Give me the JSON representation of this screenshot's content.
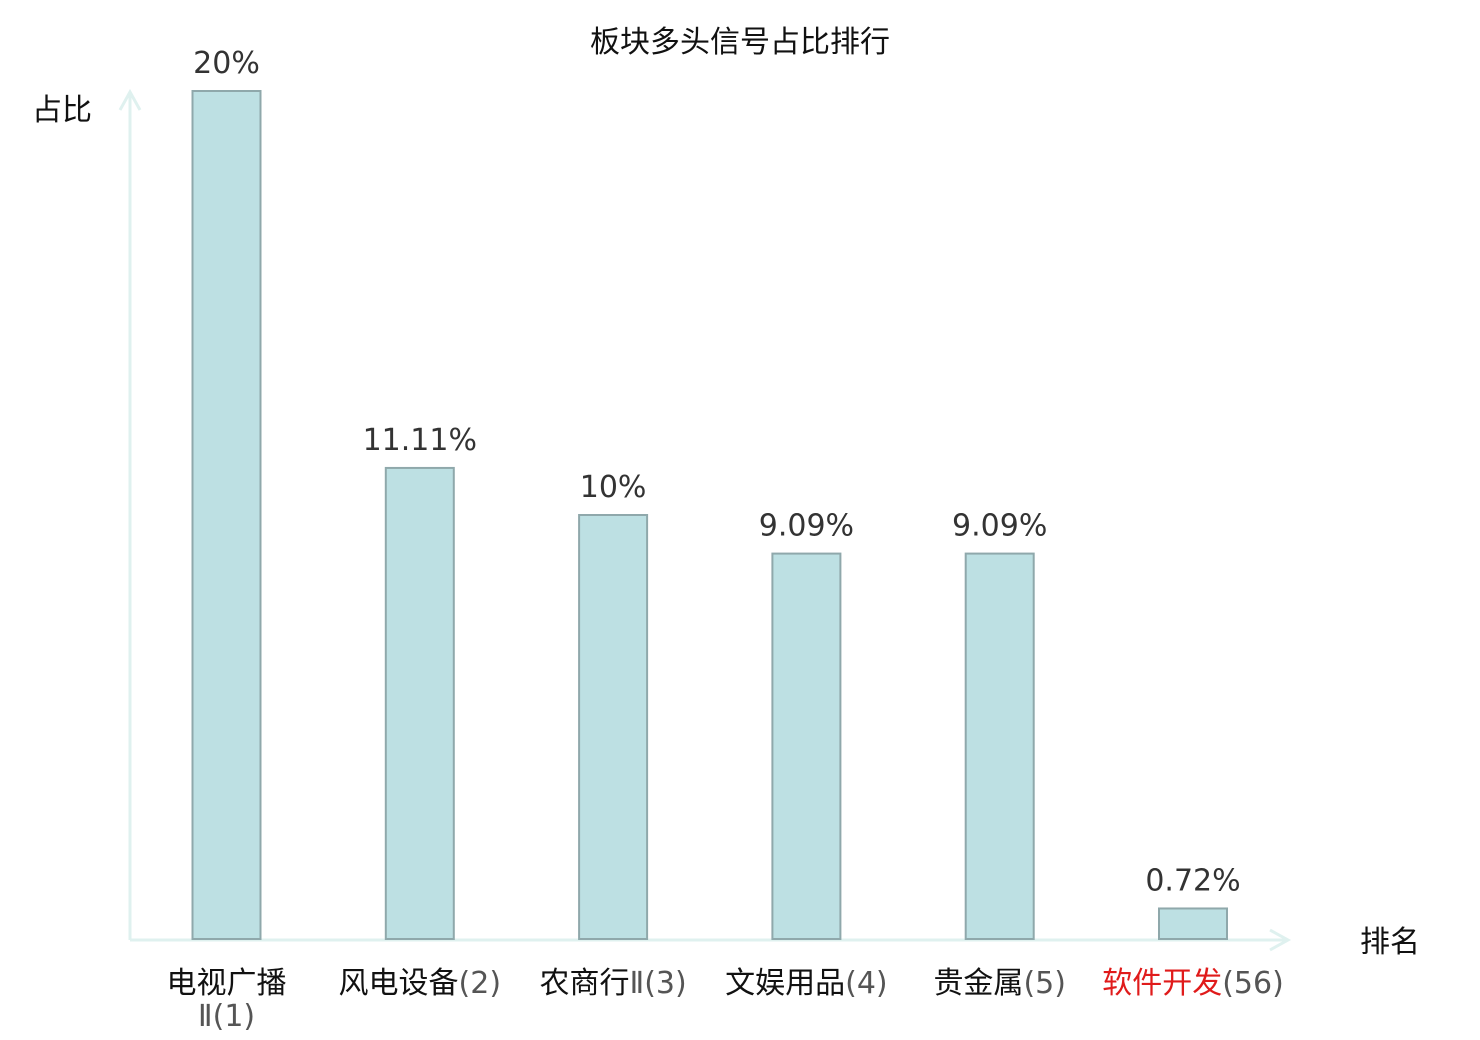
{
  "chart_data": {
    "type": "bar",
    "title": "板块多头信号占比排行",
    "xlabel": "排名",
    "ylabel": "占比",
    "categories": [
      {
        "name": "电视广播",
        "rank": "Ⅱ(1)",
        "highlight": false
      },
      {
        "name": "风电设备",
        "rank": "(2)",
        "highlight": false
      },
      {
        "name": "农商行",
        "rank": "Ⅱ(3)",
        "highlight": false
      },
      {
        "name": "文娱用品",
        "rank": "(4)",
        "highlight": false
      },
      {
        "name": "贵金属",
        "rank": "(5)",
        "highlight": false
      },
      {
        "name": "软件开发",
        "rank": "(56)",
        "highlight": true
      }
    ],
    "values": [
      20,
      11.11,
      10,
      9.09,
      9.09,
      0.72
    ],
    "value_labels": [
      "20%",
      "11.11%",
      "10%",
      "9.09%",
      "9.09%",
      "0.72%"
    ],
    "ylim": [
      0,
      20
    ],
    "grid": false,
    "colors": {
      "bar_fill": "#bde0e3",
      "bar_stroke": "#8fa8ab",
      "axis": "#dff1ef",
      "highlight": "#e01b1b",
      "text": "#111111"
    }
  }
}
